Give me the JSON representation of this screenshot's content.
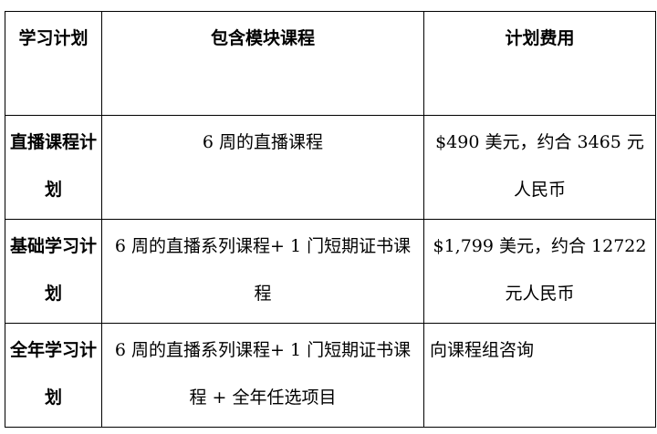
{
  "table": {
    "headers": [
      "学习计划",
      "包含模块课程",
      "计划费用"
    ],
    "rows": [
      {
        "plan": "直播课程计划",
        "modules": "6 周的直播课程",
        "cost": "$490 美元，约合 3465 元人民币"
      },
      {
        "plan": "基础学习计划",
        "modules": "6 周的直播系列课程+ 1 门短期证书课程",
        "cost": "$1,799 美元，约合 12722 元人民币"
      },
      {
        "plan": "全年学习计划",
        "modules": "6 周的直播系列课程+ 1 门短期证书课程 + 全年任选项目",
        "cost": "向课程组咨询"
      }
    ]
  }
}
